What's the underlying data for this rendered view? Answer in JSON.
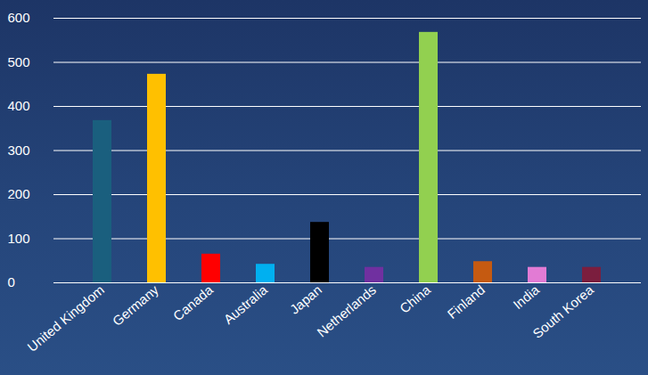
{
  "chart_data": {
    "type": "bar",
    "categories": [
      "United Kingdom",
      "Germany",
      "Canada",
      "Australia",
      "Japan",
      "Netherlands",
      "China",
      "Finland",
      "India",
      "South Korea"
    ],
    "values": [
      368,
      473,
      65,
      42,
      137,
      35,
      568,
      48,
      35,
      35
    ],
    "colors": [
      "#1a5f7e",
      "#ffc000",
      "#ff0000",
      "#00b0f0",
      "#000000",
      "#7030a0",
      "#92d050",
      "#c55a11",
      "#e27bd4",
      "#7b1e3e"
    ],
    "ylim": [
      0,
      600
    ],
    "yticks": [
      0,
      100,
      200,
      300,
      400,
      500,
      600
    ],
    "grid": true
  }
}
